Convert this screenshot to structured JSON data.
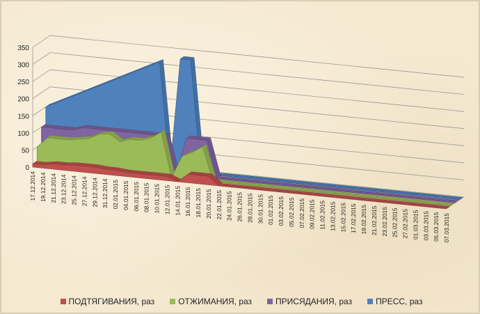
{
  "chart_data": {
    "type": "area",
    "title": "",
    "xlabel": "",
    "ylabel": "",
    "ylim": [
      0,
      350
    ],
    "yticks": [
      0,
      50,
      100,
      150,
      200,
      250,
      300,
      350
    ],
    "grid": true,
    "legend_position": "bottom",
    "three_d": true,
    "x": [
      "17.12.2014",
      "19.12.2014",
      "21.12.2014",
      "23.12.2014",
      "25.12.2014",
      "27.12.2014",
      "29.12.2014",
      "31.12.2014",
      "02.01.2015",
      "04.01.2015",
      "06.01.2015",
      "08.01.2015",
      "10.01.2015",
      "12.01.2015",
      "14.01.2015",
      "16.01.2015",
      "18.01.2015",
      "20.01.2015",
      "22.01.2015",
      "24.01.2015",
      "26.01.2015",
      "28.01.2015",
      "30.01.2015",
      "01.02.2015",
      "03.02.2015",
      "05.02.2015",
      "07.02.2015",
      "09.02.2015",
      "11.02.2015",
      "13.02.2015",
      "15.02.2015",
      "17.02.2015",
      "19.02.2015",
      "21.02.2015",
      "23.02.2015",
      "25.02.2015",
      "27.02.2015",
      "01.03.2015",
      "03.03.2015",
      "05.03.2015",
      "07.03.2015"
    ],
    "series": [
      {
        "name": "ПОДТЯГИВАНИЯ, раз",
        "color": "#c0504d",
        "values": [
          10,
          10,
          15,
          15,
          18,
          18,
          18,
          15,
          15,
          12,
          12,
          12,
          12,
          12,
          0,
          25,
          25,
          25,
          0,
          0,
          0,
          0,
          0,
          0,
          0,
          0,
          0,
          0,
          0,
          0,
          0,
          0,
          0,
          0,
          0,
          0,
          0,
          0,
          0,
          0,
          0
        ]
      },
      {
        "name": "ОТЖИМАНИЯ, раз",
        "color": "#9bbb59",
        "values": [
          50,
          80,
          80,
          80,
          85,
          90,
          105,
          110,
          90,
          100,
          100,
          110,
          130,
          0,
          65,
          80,
          100,
          0,
          0,
          0,
          0,
          0,
          0,
          0,
          0,
          0,
          0,
          0,
          0,
          0,
          0,
          0,
          0,
          0,
          0,
          0,
          0,
          0,
          0,
          0,
          0
        ]
      },
      {
        "name": "ПРИСЯДАНИЯ, раз",
        "color": "#8064a2",
        "values": [
          100,
          100,
          100,
          100,
          110,
          110,
          110,
          110,
          110,
          110,
          110,
          110,
          110,
          0,
          110,
          110,
          110,
          0,
          0,
          0,
          0,
          0,
          0,
          0,
          0,
          0,
          0,
          0,
          0,
          0,
          0,
          0,
          0,
          0,
          0,
          0,
          0,
          0,
          0,
          0,
          0
        ]
      },
      {
        "name": "ПРЕСС, раз",
        "color": "#4f81bd",
        "values": [
          150,
          165,
          180,
          195,
          210,
          225,
          240,
          255,
          270,
          285,
          300,
          315,
          0,
          330,
          330,
          0,
          0,
          0,
          0,
          0,
          0,
          0,
          0,
          0,
          0,
          0,
          0,
          0,
          0,
          0,
          0,
          0,
          0,
          0,
          0,
          0,
          0,
          0,
          0,
          0,
          0
        ]
      }
    ]
  }
}
